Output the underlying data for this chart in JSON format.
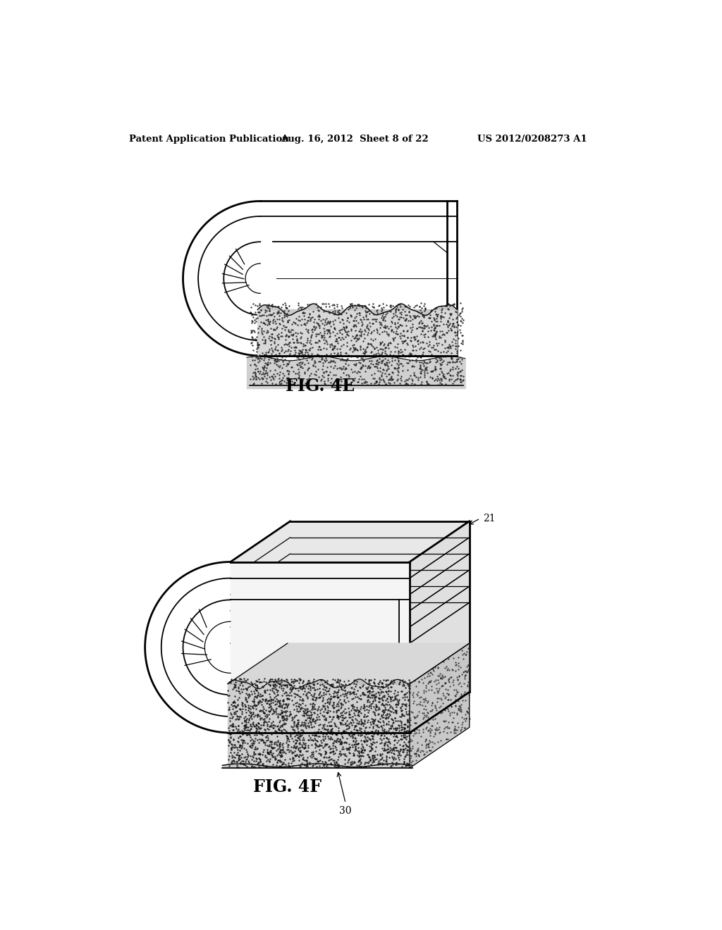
{
  "background_color": "#ffffff",
  "header_left": "Patent Application Publication",
  "header_center": "Aug. 16, 2012  Sheet 8 of 22",
  "header_right": "US 2012/0208273 A1",
  "fig4e_label": "FIG. 4E",
  "fig4f_label": "FIG. 4F",
  "label_21": "21",
  "label_30": "30",
  "line_color": "#000000"
}
